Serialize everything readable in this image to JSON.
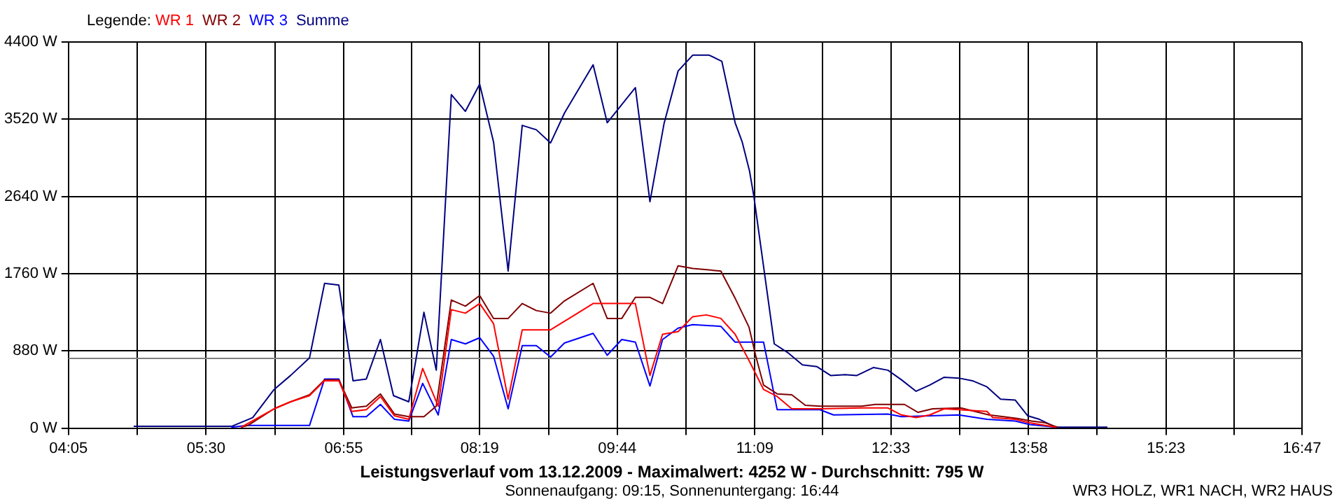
{
  "chart_data": {
    "type": "line",
    "title": "Leistungsverlauf vom 13.12.2009 - Maximalwert: 4252 W - Durchschnitt: 795 W",
    "subtitle": "Sonnenaufgang: 09:15, Sonnenuntergang: 16:44",
    "legend_title": "Legende:",
    "annotations": [
      "WR3 HOLZ, WR1 NACH, WR2 HAUS"
    ],
    "xlim": [
      4.0833,
      16.7833
    ],
    "xticks": [
      {
        "value": 4.0833,
        "label": "04:05"
      },
      {
        "value": 4.7917,
        "label": null
      },
      {
        "value": 5.5,
        "label": "05:30"
      },
      {
        "value": 6.2083,
        "label": null
      },
      {
        "value": 6.9167,
        "label": "06:55"
      },
      {
        "value": 7.6167,
        "label": null
      },
      {
        "value": 8.3167,
        "label": "08:19"
      },
      {
        "value": 9.025,
        "label": null
      },
      {
        "value": 9.7333,
        "label": "09:44"
      },
      {
        "value": 10.4417,
        "label": null
      },
      {
        "value": 11.15,
        "label": "11:09"
      },
      {
        "value": 11.85,
        "label": null
      },
      {
        "value": 12.55,
        "label": "12:33"
      },
      {
        "value": 13.2583,
        "label": null
      },
      {
        "value": 13.9667,
        "label": "13:58"
      },
      {
        "value": 14.675,
        "label": null
      },
      {
        "value": 15.3833,
        "label": "15:23"
      },
      {
        "value": 16.0833,
        "label": null
      },
      {
        "value": 16.7833,
        "label": "16:47"
      }
    ],
    "ylim": [
      0,
      4400
    ],
    "yticks": [
      {
        "value": 0,
        "label": "0 W"
      },
      {
        "value": 880,
        "label": "880 W"
      },
      {
        "value": 1760,
        "label": "1760 W"
      },
      {
        "value": 2640,
        "label": "2640 W"
      },
      {
        "value": 3520,
        "label": "3520 W"
      },
      {
        "value": 4400,
        "label": "4400 W"
      }
    ],
    "grid": true,
    "legend": "top left",
    "marker": "none",
    "line_style": "solid",
    "ref_lines": [
      {
        "axis": "y",
        "value": 795,
        "color": "#808080"
      }
    ],
    "series": [
      {
        "name": "WR 1",
        "color": "#ff0000",
        "x": [
          5.86,
          6.2,
          6.37,
          6.565,
          6.72,
          6.867,
          7.0,
          7.15,
          7.295,
          7.44,
          7.587,
          7.73,
          7.89,
          8.025,
          8.17,
          8.317,
          8.46,
          8.61,
          8.755,
          9.047,
          9.34,
          9.485,
          9.92,
          10.07,
          10.2,
          10.36,
          10.51,
          10.65,
          10.8,
          10.947,
          11.09,
          11.24,
          11.38,
          11.53,
          11.82,
          12.25,
          12.52,
          12.66,
          12.81,
          12.95,
          13.1,
          13.54,
          13.6,
          13.83,
          13.98,
          14.25
        ],
        "values": [
          10,
          220,
          300,
          370,
          540,
          540,
          190,
          210,
          360,
          140,
          100,
          680,
          250,
          1350,
          1310,
          1420,
          1190,
          330,
          1120,
          1120,
          1320,
          1420,
          1420,
          600,
          1070,
          1100,
          1270,
          1290,
          1250,
          1070,
          770,
          440,
          360,
          220,
          220,
          230,
          230,
          150,
          120,
          150,
          220,
          190,
          120,
          100,
          60,
          10
        ]
      },
      {
        "name": "WR 2",
        "color": "#800000",
        "x": [
          5.86,
          5.93,
          6.2,
          6.37,
          6.565,
          6.72,
          6.867,
          7.0,
          7.15,
          7.295,
          7.44,
          7.587,
          7.743,
          7.87,
          8.025,
          8.17,
          8.317,
          8.46,
          8.61,
          8.755,
          8.9,
          9.047,
          9.19,
          9.485,
          9.63,
          9.78,
          9.92,
          10.07,
          10.2,
          10.36,
          10.51,
          10.8,
          10.947,
          11.09,
          11.16,
          11.24,
          11.38,
          11.53,
          11.67,
          11.82,
          11.96,
          12.25,
          12.39,
          12.69,
          12.83,
          12.98,
          13.27,
          13.56,
          13.71,
          13.85,
          14.0,
          14.14,
          14.27
        ],
        "values": [
          10,
          30,
          220,
          300,
          380,
          550,
          550,
          230,
          250,
          390,
          160,
          130,
          130,
          250,
          1460,
          1390,
          1510,
          1250,
          1250,
          1420,
          1340,
          1310,
          1450,
          1650,
          1250,
          1250,
          1490,
          1490,
          1420,
          1850,
          1820,
          1790,
          1480,
          1150,
          820,
          490,
          390,
          380,
          260,
          250,
          250,
          250,
          270,
          270,
          180,
          220,
          230,
          150,
          130,
          110,
          80,
          60,
          10
        ]
      },
      {
        "name": "WR 3",
        "color": "#0000ff",
        "x": [
          5.76,
          5.93,
          6.565,
          6.72,
          6.867,
          7.013,
          7.15,
          7.295,
          7.44,
          7.587,
          7.73,
          7.89,
          8.025,
          8.17,
          8.317,
          8.46,
          8.61,
          8.755,
          8.9,
          9.047,
          9.19,
          9.485,
          9.63,
          9.78,
          9.92,
          10.07,
          10.2,
          10.36,
          10.51,
          10.8,
          10.947,
          11.24,
          11.38,
          11.82,
          11.96,
          12.52,
          12.66,
          13.25,
          13.54,
          13.83,
          13.98,
          14.25
        ],
        "values": [
          10,
          30,
          30,
          560,
          560,
          130,
          130,
          270,
          100,
          80,
          510,
          150,
          1010,
          960,
          1030,
          820,
          220,
          940,
          940,
          810,
          970,
          1080,
          830,
          1010,
          980,
          480,
          1010,
          1140,
          1180,
          1160,
          980,
          980,
          210,
          210,
          150,
          160,
          130,
          150,
          100,
          80,
          40,
          10
        ]
      },
      {
        "name": "Summe",
        "color": "#000080",
        "x": [
          4.755,
          5.762,
          5.98,
          6.2,
          6.37,
          6.565,
          6.72,
          6.867,
          7.013,
          7.15,
          7.295,
          7.43,
          7.587,
          7.743,
          7.87,
          8.025,
          8.17,
          8.317,
          8.46,
          8.61,
          8.755,
          8.9,
          9.047,
          9.19,
          9.485,
          9.63,
          9.92,
          10.07,
          10.215,
          10.36,
          10.51,
          10.68,
          10.81,
          10.947,
          11.02,
          11.095,
          11.14,
          11.35,
          11.49,
          11.64,
          11.79,
          11.93,
          12.08,
          12.2,
          12.37,
          12.52,
          12.66,
          12.81,
          12.95,
          13.1,
          13.25,
          13.39,
          13.54,
          13.68,
          13.83,
          13.96,
          14.08,
          14.25,
          14.78
        ],
        "values": [
          20,
          20,
          120,
          440,
          600,
          800,
          1650,
          1630,
          540,
          560,
          1010,
          370,
          300,
          1320,
          660,
          3800,
          3610,
          3920,
          3260,
          1790,
          3450,
          3400,
          3250,
          3590,
          4140,
          3480,
          3880,
          2580,
          3470,
          4070,
          4250,
          4250,
          4180,
          3480,
          3260,
          2930,
          2640,
          960,
          860,
          720,
          700,
          600,
          610,
          600,
          690,
          660,
          550,
          420,
          490,
          580,
          570,
          540,
          470,
          330,
          320,
          140,
          100,
          10,
          10
        ]
      }
    ]
  }
}
